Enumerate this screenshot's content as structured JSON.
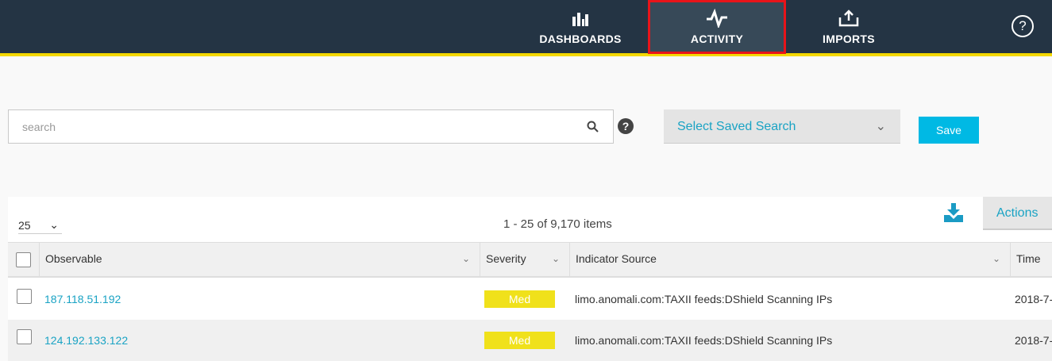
{
  "nav": {
    "items": [
      {
        "label": "DASHBOARDS",
        "icon": "bar-chart-icon"
      },
      {
        "label": "ACTIVITY",
        "icon": "activity-pulse-icon",
        "active": true
      },
      {
        "label": "IMPORTS",
        "icon": "upload-icon"
      }
    ],
    "help_icon": "?"
  },
  "search": {
    "placeholder": "search",
    "value": ""
  },
  "saved_search": {
    "label": "Select Saved Search"
  },
  "save_label": "Save",
  "toolbar": {
    "page_size": "25",
    "count": "1 - 25 of 9,170 items",
    "actions_label": "Actions"
  },
  "table": {
    "headers": [
      "Observable",
      "Severity",
      "Indicator Source",
      "Time"
    ],
    "rows": [
      {
        "observable": "187.118.51.192",
        "severity": "Med",
        "source": "limo.anomali.com:TAXII feeds:DShield Scanning IPs",
        "time": "2018-7-"
      },
      {
        "observable": "124.192.133.122",
        "severity": "Med",
        "source": "limo.anomali.com:TAXII feeds:DShield Scanning IPs",
        "time": "2018-7-"
      }
    ]
  },
  "colors": {
    "topbar": "#243444",
    "accent": "#f4d800",
    "link": "#1aa3c4",
    "severity_med": "#f0e11b",
    "save_button": "#00b9e4"
  }
}
